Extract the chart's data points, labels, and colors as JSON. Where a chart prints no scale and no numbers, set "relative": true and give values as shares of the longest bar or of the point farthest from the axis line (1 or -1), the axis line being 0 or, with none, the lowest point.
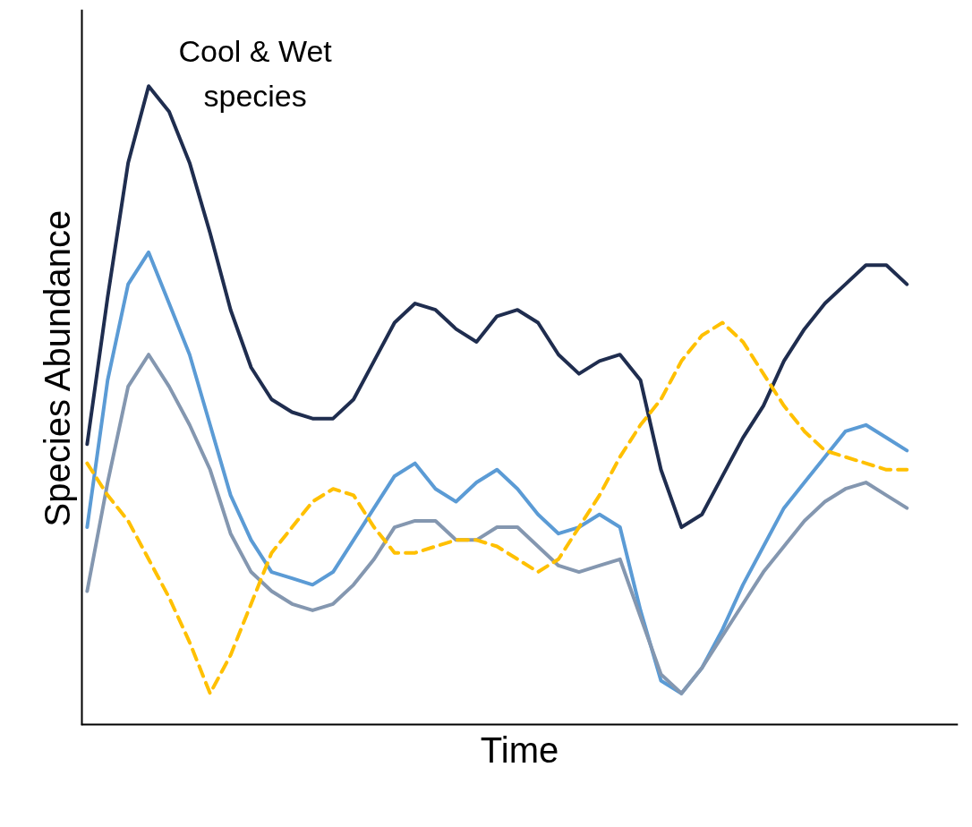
{
  "chart_data": {
    "type": "line",
    "xlabel": "Time",
    "ylabel": "Species Abundance",
    "relative": true,
    "annotations": [
      "Cool & Wet\nspecies"
    ],
    "categories": [
      null,
      null,
      null,
      null,
      null,
      null,
      null,
      null,
      null,
      null,
      null,
      null,
      null,
      null,
      null,
      null,
      null,
      null,
      null,
      null,
      null,
      null,
      null,
      null,
      null,
      null,
      null,
      null,
      null,
      null,
      null,
      null,
      null,
      null,
      null,
      null,
      null,
      null,
      null,
      null,
      null
    ],
    "series": [
      {
        "color": "#1f2d4f",
        "line_style": "solid",
        "values": [
          0.44,
          0.67,
          0.88,
          1.0,
          0.96,
          0.88,
          0.77,
          0.65,
          0.56,
          0.51,
          0.49,
          0.48,
          0.48,
          0.51,
          0.57,
          0.63,
          0.66,
          0.65,
          0.62,
          0.6,
          0.64,
          0.65,
          0.63,
          0.58,
          0.55,
          0.57,
          0.58,
          0.54,
          0.4,
          0.31,
          0.33,
          0.39,
          0.45,
          0.5,
          0.57,
          0.62,
          0.66,
          0.69,
          0.72,
          0.72,
          0.69
        ]
      },
      {
        "color": "#5b9bd5",
        "line_style": "solid",
        "values": [
          0.31,
          0.54,
          0.69,
          0.74,
          0.66,
          0.58,
          0.47,
          0.36,
          0.29,
          0.24,
          0.23,
          0.22,
          0.24,
          0.29,
          0.34,
          0.39,
          0.41,
          0.37,
          0.35,
          0.38,
          0.4,
          0.37,
          0.33,
          0.3,
          0.31,
          0.33,
          0.31,
          0.18,
          0.07,
          0.05,
          0.09,
          0.15,
          0.22,
          0.28,
          0.34,
          0.38,
          0.42,
          0.46,
          0.47,
          0.45,
          0.43
        ]
      },
      {
        "color": "#8497b0",
        "line_style": "solid",
        "values": [
          0.21,
          0.38,
          0.53,
          0.58,
          0.53,
          0.47,
          0.4,
          0.3,
          0.24,
          0.21,
          0.19,
          0.18,
          0.19,
          0.22,
          0.26,
          0.31,
          0.32,
          0.32,
          0.29,
          0.29,
          0.31,
          0.31,
          0.28,
          0.25,
          0.24,
          0.25,
          0.26,
          0.17,
          0.08,
          0.05,
          0.09,
          0.14,
          0.19,
          0.24,
          0.28,
          0.32,
          0.35,
          0.37,
          0.38,
          0.36,
          0.34
        ]
      },
      {
        "color": "#ffc000",
        "line_style": "dashed",
        "values": [
          0.41,
          0.36,
          0.32,
          0.26,
          0.2,
          0.13,
          0.05,
          0.11,
          0.19,
          0.27,
          0.31,
          0.35,
          0.37,
          0.36,
          0.31,
          0.27,
          0.27,
          0.28,
          0.29,
          0.29,
          0.28,
          0.26,
          0.24,
          0.26,
          0.31,
          0.36,
          0.42,
          0.47,
          0.51,
          0.57,
          0.61,
          0.63,
          0.6,
          0.55,
          0.5,
          0.46,
          0.43,
          0.42,
          0.41,
          0.4,
          0.4
        ]
      }
    ]
  }
}
